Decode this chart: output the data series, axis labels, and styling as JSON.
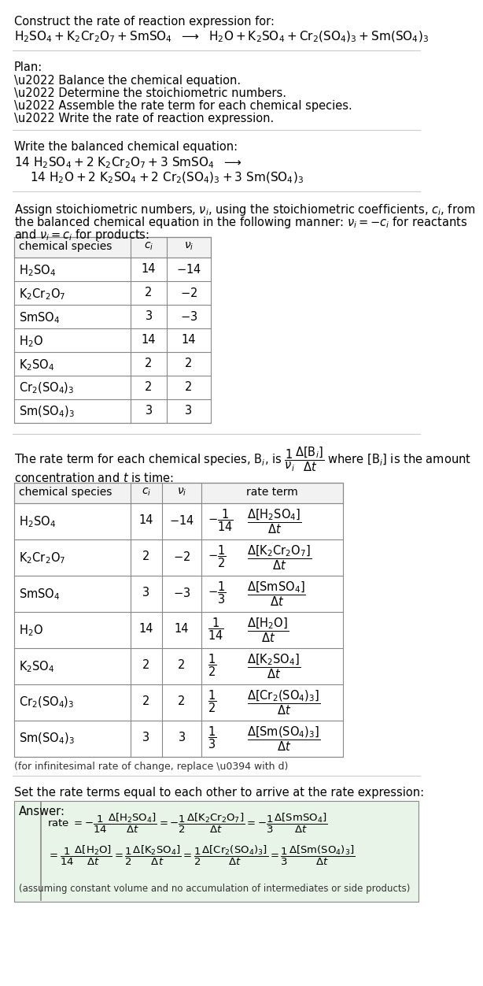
{
  "title_line": "Construct the rate of reaction expression for:",
  "rxn_unbal": "$\\mathrm{H_2SO_4 + K_2Cr_2O_7 + SmSO_4}$  $\\longrightarrow$  $\\mathrm{H_2O + K_2SO_4 + Cr_2(SO_4)_3 + Sm(SO_4)_3}$",
  "plan_header": "Plan:",
  "plan_items": [
    "\\u2022 Balance the chemical equation.",
    "\\u2022 Determine the stoichiometric numbers.",
    "\\u2022 Assemble the rate term for each chemical species.",
    "\\u2022 Write the rate of reaction expression."
  ],
  "bal_header": "Write the balanced chemical equation:",
  "bal_line1": "$\\mathrm{14\\ H_2SO_4 + 2\\ K_2Cr_2O_7 + 3\\ SmSO_4}$  $\\longrightarrow$",
  "bal_line2": "$\\mathrm{14\\ H_2O + 2\\ K_2SO_4 + 2\\ Cr_2(SO_4)_3 + 3\\ Sm(SO_4)_3}$",
  "assign_p1": "Assign stoichiometric numbers, $\\nu_i$, using the stoichiometric coefficients, $c_i$, from",
  "assign_p2": "the balanced chemical equation in the following manner: $\\nu_i = -c_i$ for reactants",
  "assign_p3": "and $\\nu_i = c_i$ for products:",
  "t1_headers": [
    "chemical species",
    "$c_i$",
    "$\\nu_i$"
  ],
  "t1_rows": [
    [
      "$\\mathrm{H_2SO_4}$",
      "14",
      "$-14$"
    ],
    [
      "$\\mathrm{K_2Cr_2O_7}$",
      "2",
      "$-2$"
    ],
    [
      "$\\mathrm{SmSO_4}$",
      "3",
      "$-3$"
    ],
    [
      "$\\mathrm{H_2O}$",
      "14",
      "14"
    ],
    [
      "$\\mathrm{K_2SO_4}$",
      "2",
      "2"
    ],
    [
      "$\\mathrm{Cr_2(SO_4)_3}$",
      "2",
      "2"
    ],
    [
      "$\\mathrm{Sm(SO_4)_3}$",
      "3",
      "3"
    ]
  ],
  "rate_p1": "The rate term for each chemical species, $\\mathrm{B}_i$, is $\\dfrac{1}{\\nu_i}\\dfrac{\\Delta[\\mathrm{B}_i]}{\\Delta t}$ where $[\\mathrm{B}_i]$ is the amount",
  "rate_p2": "concentration and $t$ is time:",
  "t2_headers": [
    "chemical species",
    "$c_i$",
    "$\\nu_i$",
    "rate term"
  ],
  "t2_rows": [
    [
      "$\\mathrm{H_2SO_4}$",
      "14",
      "$-14$",
      "-",
      "1",
      "14",
      "$\\mathrm{H_2SO_4}$"
    ],
    [
      "$\\mathrm{K_2Cr_2O_7}$",
      "2",
      "$-2$",
      "-",
      "1",
      "2",
      "$\\mathrm{K_2Cr_2O_7}$"
    ],
    [
      "$\\mathrm{SmSO_4}$",
      "3",
      "$-3$",
      "-",
      "1",
      "3",
      "$\\mathrm{SmSO_4}$"
    ],
    [
      "$\\mathrm{H_2O}$",
      "14",
      "14",
      "",
      "1",
      "14",
      "$\\mathrm{H_2O}$"
    ],
    [
      "$\\mathrm{K_2SO_4}$",
      "2",
      "2",
      "",
      "1",
      "2",
      "$\\mathrm{K_2SO_4}$"
    ],
    [
      "$\\mathrm{Cr_2(SO_4)_3}$",
      "2",
      "2",
      "",
      "1",
      "2",
      "$\\mathrm{Cr_2(SO_4)_3}$"
    ],
    [
      "$\\mathrm{Sm(SO_4)_3}$",
      "3",
      "3",
      "",
      "1",
      "3",
      "$\\mathrm{Sm(SO_4)_3}$"
    ]
  ],
  "inf_note": "(for infinitesimal rate of change, replace \\u0394 with d)",
  "set_text": "Set the rate terms equal to each other to arrive at the rate expression:",
  "ans_header": "Answer:",
  "ans_box_color": "#e8f4e8",
  "ans_line1a": "rate $= -\\dfrac{1}{14}\\dfrac{\\Delta[\\mathrm{H_2SO_4}]}{\\Delta t} = -\\dfrac{1}{2}\\dfrac{\\Delta[\\mathrm{K_2Cr_2O_7}]}{\\Delta t} = -\\dfrac{1}{3}\\dfrac{\\Delta[\\mathrm{SmSO_4}]}{\\Delta t}$",
  "ans_line2a": "$= \\dfrac{1}{14}\\dfrac{\\Delta[\\mathrm{H_2O}]}{\\Delta t} = \\dfrac{1}{2}\\dfrac{\\Delta[\\mathrm{K_2SO_4}]}{\\Delta t} = \\dfrac{1}{2}\\dfrac{\\Delta[\\mathrm{Cr_2(SO_4)_3}]}{\\Delta t} = \\dfrac{1}{3}\\dfrac{\\Delta[\\mathrm{Sm(SO_4)_3}]}{\\Delta t}$",
  "ans_note": "(assuming constant volume and no accumulation of intermediates or side products)"
}
